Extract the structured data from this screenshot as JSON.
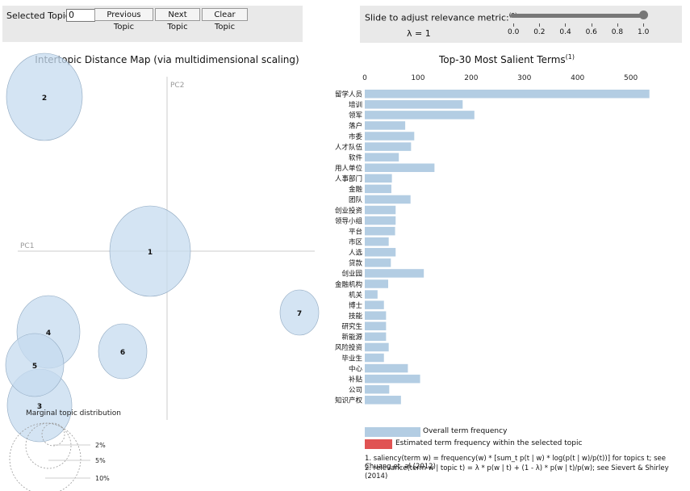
{
  "controls": {
    "selected_topic_label": "Selected Topic:",
    "selected_topic_value": "0",
    "prev_label": "Previous Topic",
    "next_label": "Next Topic",
    "clear_label": "Clear Topic",
    "slider_label": "Slide to adjust relevance metric:",
    "slider_footnote": "(2)",
    "lambda_text": "λ = 1",
    "lambda_value": 1.0,
    "slider_ticks": [
      "0.0",
      "0.2",
      "0.4",
      "0.6",
      "0.8",
      "1.0"
    ]
  },
  "topic_map": {
    "title": "Intertopic Distance Map (via multidimensional scaling)",
    "pc1": "PC1",
    "pc2": "PC2",
    "topics": [
      {
        "id": "1"
      },
      {
        "id": "2"
      },
      {
        "id": "3"
      },
      {
        "id": "4"
      },
      {
        "id": "5"
      },
      {
        "id": "6"
      },
      {
        "id": "7"
      }
    ],
    "marginal_label": "Marginal topic distribution",
    "marginal_ticks": [
      "2%",
      "5%",
      "10%"
    ]
  },
  "chart_data": {
    "type": "bar",
    "title": "Top-30 Most Salient Terms",
    "title_footnote": "(1)",
    "xlim": [
      0,
      540
    ],
    "xticks": [
      "0",
      "100",
      "200",
      "300",
      "400",
      "500"
    ],
    "categories": [
      "留学人员",
      "培训",
      "领军",
      "落户",
      "市委",
      "人才队伍",
      "软件",
      "用人单位",
      "人事部门",
      "金融",
      "团队",
      "创业投资",
      "领导小组",
      "平台",
      "市区",
      "人选",
      "贷款",
      "创业园",
      "金融机构",
      "机关",
      "博士",
      "技能",
      "研究生",
      "新能源",
      "风险投资",
      "毕业生",
      "中心",
      "补贴",
      "公司",
      "知识产权"
    ],
    "series": [
      {
        "name": "Overall term frequency",
        "values": [
          535,
          184,
          206,
          76,
          93,
          87,
          64,
          131,
          51,
          50,
          86,
          58,
          58,
          57,
          45,
          58,
          49,
          111,
          44,
          24,
          36,
          40,
          40,
          40,
          45,
          36,
          81,
          104,
          46,
          68
        ]
      }
    ]
  },
  "legend": {
    "overall": "Overall term frequency",
    "estimated": "Estimated term frequency within the selected topic"
  },
  "footnotes": {
    "one": "1. saliency(term w) = frequency(w) * [sum_t p(t | w) * log(p(t | w)/p(t))] for topics t; see Chuang et. al (2012)",
    "two": "2. relevance(term w | topic t) = λ * p(w | t) + (1 - λ) * p(w | t)/p(w); see Sievert & Shirley (2014)"
  },
  "colors": {
    "bar_overall": "#b3cde3",
    "bar_estimated": "#e05353",
    "circle_fill": "#c6dbef",
    "circle_stroke": "#8fa8c0"
  }
}
